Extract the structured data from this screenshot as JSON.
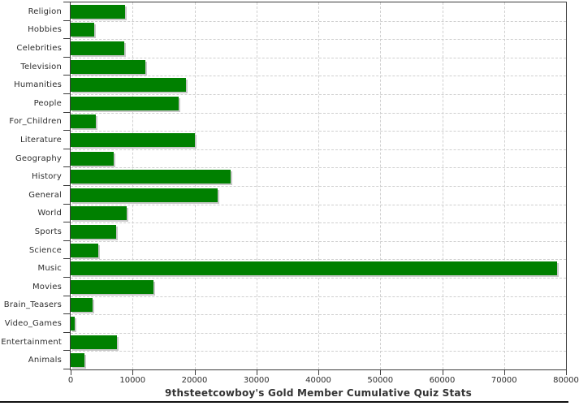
{
  "chart_data": {
    "type": "bar",
    "orientation": "horizontal",
    "title": "9thsteetcowboy's Gold Member Cumulative Quiz Stats",
    "categories": [
      "Religion",
      "Hobbies",
      "Celebrities",
      "Television",
      "Humanities",
      "People",
      "For_Children",
      "Literature",
      "Geography",
      "History",
      "General",
      "World",
      "Sports",
      "Science",
      "Music",
      "Movies",
      "Brain_Teasers",
      "Video_Games",
      "Entertainment",
      "Animals"
    ],
    "values": [
      8800,
      3800,
      8700,
      12100,
      18600,
      17400,
      4000,
      20100,
      7000,
      25800,
      23800,
      9000,
      7400,
      4500,
      78600,
      13400,
      3500,
      700,
      7500,
      2200
    ],
    "xlim": [
      0,
      80000
    ],
    "x_ticks": [
      0,
      10000,
      20000,
      30000,
      40000,
      50000,
      60000,
      70000,
      80000
    ],
    "x_tick_labels": [
      "0",
      "10000",
      "20000",
      "30000",
      "40000",
      "50000",
      "60000",
      "70000",
      "80000"
    ],
    "grid": "dashed-both-axes",
    "legend": "none",
    "bar_color": "#008000",
    "bar_shadow_color": "#c8c8c8",
    "axis_color": "#3c3c3c",
    "grid_color": "#cfcfcf",
    "text_color": "#2e2e2e",
    "background_color": "#ffffff"
  }
}
